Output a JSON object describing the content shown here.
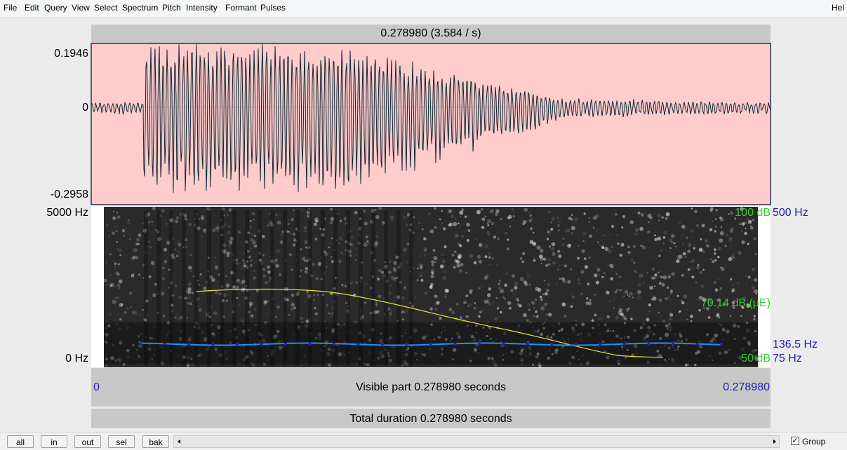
{
  "menu": [
    "File",
    "Edit",
    "Query",
    "View",
    "Select",
    "Spectrum",
    "Pitch",
    "Intensity",
    "Formant",
    "Pulses"
  ],
  "help": "Hel",
  "selection_bar": "0.278980 (3.584 / s)",
  "waveform": {
    "max": "0.1946",
    "zero": "0",
    "min": "-0.2958"
  },
  "spectrogram": {
    "freq_max": "5000 Hz",
    "freq_min": "0 Hz",
    "intensity_max": "100 dB",
    "pitch_max": "500 Hz",
    "intensity_value": "70.14 dB (μE)",
    "pitch_value": "136.5 Hz",
    "intensity_min": "50 dB",
    "pitch_min": "75 Hz"
  },
  "time_axis": {
    "start": "0",
    "visible": "Visible part 0.278980 seconds",
    "end": "0.278980"
  },
  "total": "Total duration 0.278980 seconds",
  "buttons": [
    "all",
    "in",
    "out",
    "sel",
    "bak"
  ],
  "group": "Group"
}
